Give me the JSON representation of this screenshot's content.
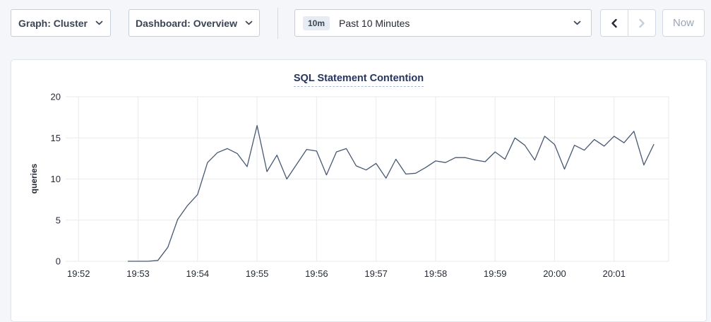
{
  "toolbar": {
    "graph_dropdown": {
      "label": "Graph: Cluster"
    },
    "dashboard_dropdown": {
      "label": "Dashboard: Overview"
    },
    "time_selector": {
      "badge": "10m",
      "label": "Past 10 Minutes"
    },
    "now_button": {
      "label": "Now"
    }
  },
  "chart_data": {
    "type": "line",
    "title": "SQL Statement Contention",
    "ylabel": "queries",
    "ylim": [
      0,
      20
    ],
    "yticks": [
      0,
      5,
      10,
      15,
      20
    ],
    "xtick_labels": [
      "19:52",
      "19:53",
      "19:54",
      "19:55",
      "19:56",
      "19:57",
      "19:58",
      "19:59",
      "20:00",
      "20:01"
    ],
    "x_domain": [
      "19:51:47",
      "20:01:55"
    ],
    "grid": true,
    "legend": "none",
    "line_color": "#475872",
    "grid_color": "#e8eaed",
    "tick_color": "#242a35",
    "series": [
      {
        "name": "queries",
        "times": [
          "19:52:50",
          "19:53:00",
          "19:53:10",
          "19:53:20",
          "19:53:30",
          "19:53:40",
          "19:53:50",
          "19:54:00",
          "19:54:10",
          "19:54:20",
          "19:54:30",
          "19:54:40",
          "19:54:50",
          "19:55:00",
          "19:55:10",
          "19:55:20",
          "19:55:30",
          "19:55:40",
          "19:55:50",
          "19:56:00",
          "19:56:10",
          "19:56:20",
          "19:56:30",
          "19:56:40",
          "19:56:50",
          "19:57:00",
          "19:57:10",
          "19:57:20",
          "19:57:30",
          "19:57:40",
          "19:57:50",
          "19:58:00",
          "19:58:10",
          "19:58:20",
          "19:58:30",
          "19:58:40",
          "19:58:50",
          "19:59:00",
          "19:59:10",
          "19:59:20",
          "19:59:30",
          "19:59:40",
          "19:59:50",
          "20:00:00",
          "20:00:10",
          "20:00:20",
          "20:00:30",
          "20:00:40",
          "20:00:50",
          "20:01:00",
          "20:01:10",
          "20:01:20",
          "20:01:30",
          "20:01:40"
        ],
        "values": [
          0,
          0,
          0,
          0.1,
          1.7,
          5.1,
          6.8,
          8.1,
          12,
          13.2,
          13.7,
          13.1,
          11.5,
          16.5,
          10.9,
          12.9,
          10,
          11.8,
          13.6,
          13.4,
          10.5,
          13.3,
          13.7,
          11.6,
          11.1,
          11.9,
          10.1,
          12.4,
          10.6,
          10.7,
          11.4,
          12.2,
          12,
          12.6,
          12.6,
          12.3,
          12.1,
          13.3,
          12.4,
          15,
          14.1,
          12.3,
          15.2,
          14.2,
          11.2,
          14.1,
          13.5,
          14.8,
          14,
          15.2,
          14.4,
          15.8,
          11.7,
          14.2
        ]
      }
    ]
  }
}
